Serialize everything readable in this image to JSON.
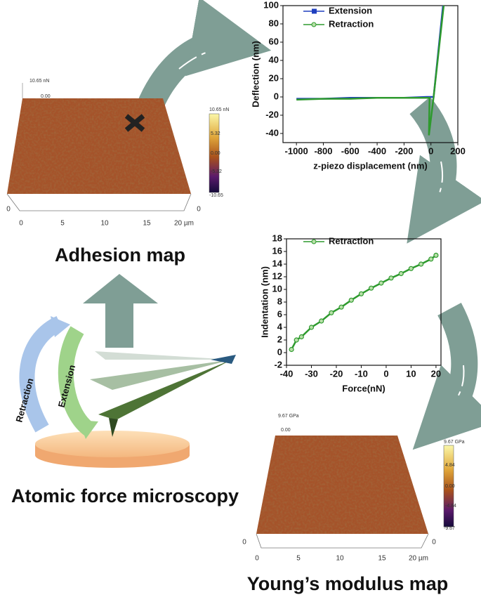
{
  "adhesion_map": {
    "title": "Adhesion map",
    "z_labels": [
      "10.65 nN",
      "0.00"
    ],
    "colorbar_labels": [
      "10.65 nN",
      "5.32",
      "0.00",
      "-5.32",
      "-10.65"
    ],
    "x_ticks": [
      "0",
      "5",
      "10",
      "15",
      "20 µm"
    ],
    "corner_labels": [
      "0",
      "0"
    ]
  },
  "afm": {
    "title": "Atomic force microscopy",
    "retraction": "Retraction",
    "extension": "Extension"
  },
  "modulus_map": {
    "title": "Young’s modulus map",
    "z_labels": [
      "9.67 GPa",
      "0.00"
    ],
    "colorbar_labels": [
      "9.67 GPa",
      "4.84",
      "0.00",
      "-4.84",
      "-9.67"
    ],
    "x_ticks": [
      "0",
      "5",
      "10",
      "15",
      "20 µm"
    ],
    "corner_labels": [
      "0",
      "0"
    ]
  },
  "deflection_chart": {
    "type": "line",
    "x_label": "z-piezo displacement (nm)",
    "y_label": "Deflection (nm)",
    "xlim": [
      -1100,
      200
    ],
    "ylim": [
      -50,
      100
    ],
    "xticks": [
      -1000,
      -800,
      -600,
      -400,
      -200,
      0,
      200
    ],
    "yticks": [
      -40,
      -20,
      0,
      20,
      40,
      60,
      80,
      100
    ],
    "series": [
      {
        "name": "Extension",
        "color": "#1f3fbf",
        "marker": "square",
        "x": [
          -1000,
          -800,
          -600,
          -400,
          -200,
          -30,
          20,
          90
        ],
        "values": [
          -2,
          -2,
          -1,
          -1,
          -1,
          0,
          0,
          100
        ]
      },
      {
        "name": "Retraction",
        "color": "#2e9a2e",
        "marker": "circle",
        "x": [
          95,
          20,
          -15,
          -10,
          -200,
          -400,
          -600,
          -800,
          -1000
        ],
        "values": [
          100,
          0,
          -42,
          -1,
          -1,
          -1,
          -2,
          -2,
          -3
        ]
      }
    ]
  },
  "indentation_chart": {
    "type": "scatter-line",
    "x_label": "Force(nN)",
    "y_label": "Indentation (nm)",
    "xlim": [
      -40,
      22
    ],
    "ylim": [
      -2,
      18
    ],
    "xticks": [
      -40,
      -30,
      -20,
      -10,
      0,
      10,
      20
    ],
    "yticks": [
      -2,
      0,
      2,
      4,
      6,
      8,
      10,
      12,
      14,
      16,
      18
    ],
    "series": [
      {
        "name": "Retraction",
        "color": "#2e9a2e",
        "marker": "circle",
        "x": [
          -38,
          -36,
          -34,
          -30,
          -26,
          -22,
          -18,
          -14,
          -10,
          -6,
          -2,
          2,
          6,
          10,
          14,
          18,
          20
        ],
        "values": [
          0.5,
          2,
          2.5,
          4,
          5,
          6.3,
          7.2,
          8.3,
          9.3,
          10.2,
          11,
          11.8,
          12.5,
          13.3,
          14,
          14.8,
          15.4
        ]
      }
    ]
  }
}
